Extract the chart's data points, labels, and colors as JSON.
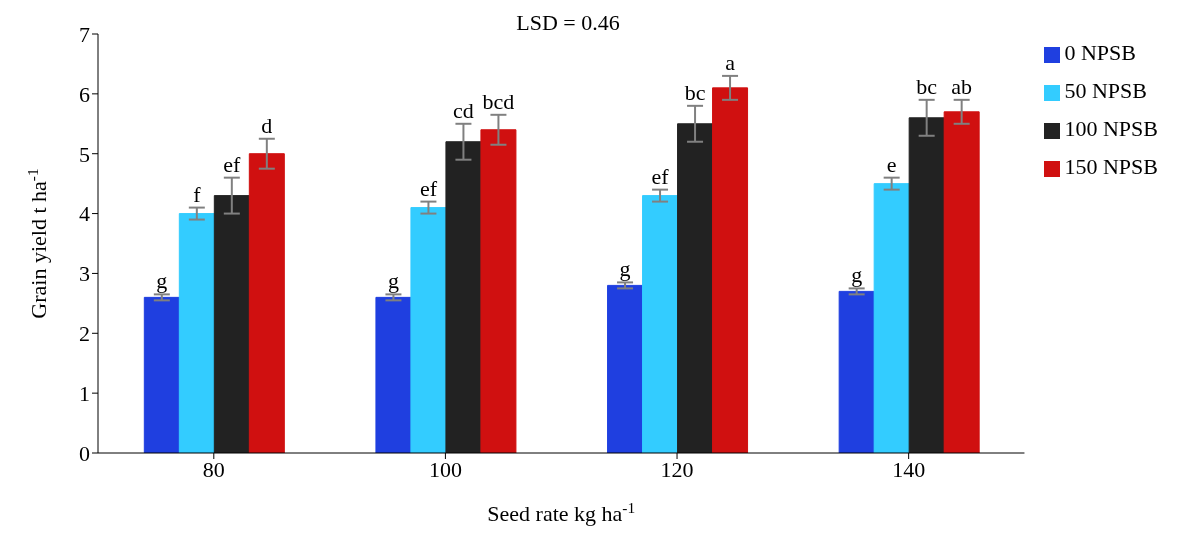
{
  "chart_data": {
    "type": "bar",
    "xlabel": "Seed rate kg ha$^{-1}$",
    "ylabel": "Grain yield t ha$^{-1}$",
    "annotations": [
      "LSD = 0.46"
    ],
    "categories": [
      "80",
      "100",
      "120",
      "140"
    ],
    "series": [
      {
        "name": "0 NPSB",
        "color": "#1f3fe0",
        "values": [
          2.6,
          2.6,
          2.8,
          2.7
        ],
        "errors": [
          0.05,
          0.05,
          0.05,
          0.05
        ],
        "value_labels": [
          "g",
          "g",
          "g",
          "g"
        ]
      },
      {
        "name": "50 NPSB",
        "color": "#33ccff",
        "values": [
          4.0,
          4.1,
          4.3,
          4.5
        ],
        "errors": [
          0.1,
          0.1,
          0.1,
          0.1
        ],
        "value_labels": [
          "f",
          "ef",
          "ef",
          "e"
        ]
      },
      {
        "name": "100 NPSB",
        "color": "#222222",
        "values": [
          4.3,
          5.2,
          5.5,
          5.6
        ],
        "errors": [
          0.3,
          0.3,
          0.3,
          0.3
        ],
        "value_labels": [
          "ef",
          "cd",
          "bc",
          "bc"
        ]
      },
      {
        "name": "150 NPSB",
        "color": "#d01010",
        "values": [
          5.0,
          5.4,
          6.1,
          5.7
        ],
        "errors": [
          0.25,
          0.25,
          0.2,
          0.2
        ],
        "value_labels": [
          "d",
          "bcd",
          "a",
          "ab"
        ]
      }
    ],
    "ylim": [
      0,
      7
    ],
    "yticks": [
      0,
      1,
      2,
      3,
      4,
      5,
      6,
      7
    ],
    "grid": false,
    "legend": "right"
  }
}
